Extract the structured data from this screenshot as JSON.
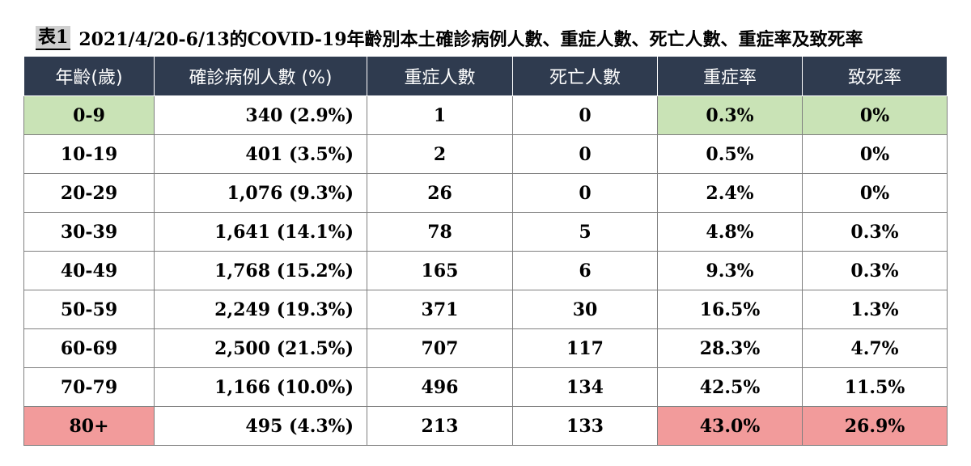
{
  "title": {
    "tag": "表1",
    "text": "2021/4/20-6/13的COVID-19年齡別本土確診病例人數、重症人數、死亡人數、重症率及致死率"
  },
  "table": {
    "headers": [
      "年齡(歲)",
      "確診病例人數 (%)",
      "重症人數",
      "死亡人數",
      "重症率",
      "致死率"
    ],
    "rows": [
      {
        "age": "0-9",
        "cases": "340 (2.9%)",
        "severe": "1",
        "deaths": "0",
        "severe_rate": "0.3%",
        "fatality_rate": "0%"
      },
      {
        "age": "10-19",
        "cases": "401 (3.5%)",
        "severe": "2",
        "deaths": "0",
        "severe_rate": "0.5%",
        "fatality_rate": "0%"
      },
      {
        "age": "20-29",
        "cases": "1,076 (9.3%)",
        "severe": "26",
        "deaths": "0",
        "severe_rate": "2.4%",
        "fatality_rate": "0%"
      },
      {
        "age": "30-39",
        "cases": "1,641 (14.1%)",
        "severe": "78",
        "deaths": "5",
        "severe_rate": "4.8%",
        "fatality_rate": "0.3%"
      },
      {
        "age": "40-49",
        "cases": "1,768 (15.2%)",
        "severe": "165",
        "deaths": "6",
        "severe_rate": "9.3%",
        "fatality_rate": "0.3%"
      },
      {
        "age": "50-59",
        "cases": "2,249 (19.3%)",
        "severe": "371",
        "deaths": "30",
        "severe_rate": "16.5%",
        "fatality_rate": "1.3%"
      },
      {
        "age": "60-69",
        "cases": "2,500 (21.5%)",
        "severe": "707",
        "deaths": "117",
        "severe_rate": "28.3%",
        "fatality_rate": "4.7%"
      },
      {
        "age": "70-79",
        "cases": "1,166 (10.0%)",
        "severe": "496",
        "deaths": "134",
        "severe_rate": "42.5%",
        "fatality_rate": "11.5%"
      },
      {
        "age": "80+",
        "cases": "495 (4.3%)",
        "severe": "213",
        "deaths": "133",
        "severe_rate": "43.0%",
        "fatality_rate": "26.9%"
      }
    ]
  },
  "colors": {
    "header_bg": "#2f3b4f",
    "highlight_low": "#c9e3b6",
    "highlight_high": "#f29b9b"
  }
}
